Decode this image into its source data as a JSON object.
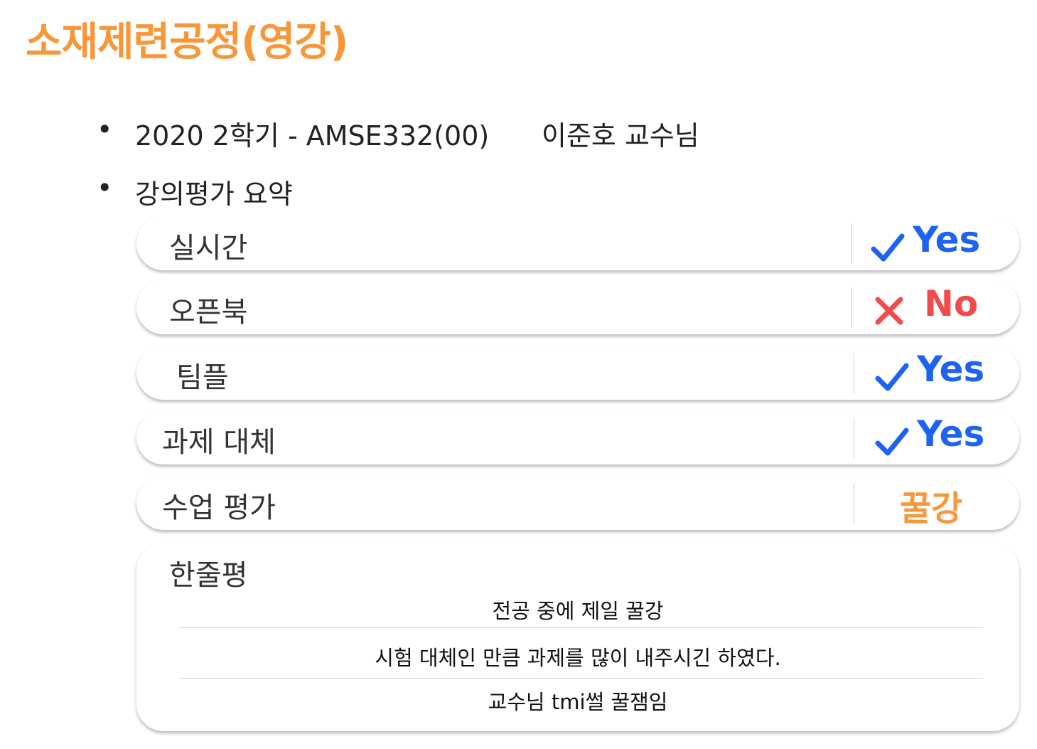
{
  "title": "소재제련공정(영강)",
  "bullets": {
    "dot": "•",
    "course_info": "2020 2학기 - AMSE332(00)",
    "professor": "이준호 교수님",
    "evaluation_heading": "강의평가 요약"
  },
  "rows": [
    {
      "label": "실시간",
      "value": "Yes",
      "mark": "check-icon"
    },
    {
      "label": "오픈북",
      "value": "No",
      "mark": "x-icon"
    },
    {
      "label": "팀플",
      "value": "Yes",
      "mark": "check-icon"
    },
    {
      "label": "과제 대체",
      "value": "Yes",
      "mark": "check-icon"
    },
    {
      "label": "수업 평가",
      "value": "꿀강",
      "mark": ""
    }
  ],
  "summary": {
    "label": "한줄평",
    "lines": [
      "전공 중에 제일 꿀강",
      "시험 대체인 만큼 과제를 많이 내주시긴 하였다.",
      "교수님 tmi썰 꿀잼임"
    ]
  },
  "colors": {
    "title": "#f7973a",
    "yes": "#1e63f0",
    "no": "#f24b4b",
    "rating": "#f7973a"
  }
}
